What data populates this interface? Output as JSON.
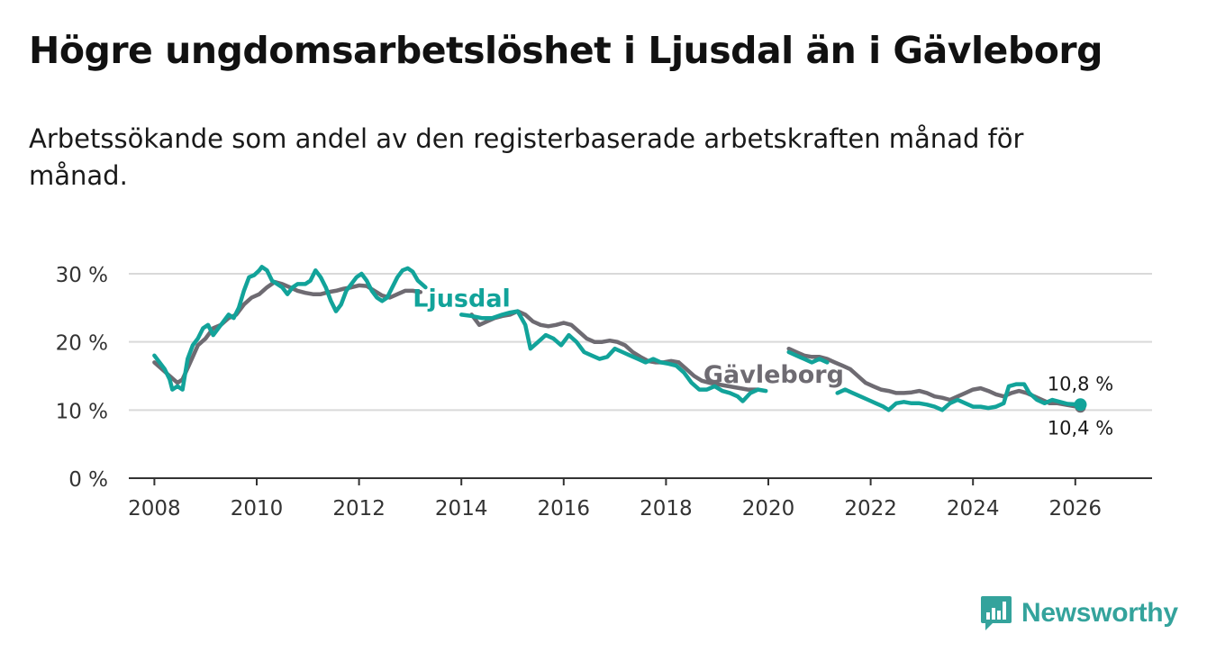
{
  "title": "Högre ungdomsarbetslöshet i Ljusdal än i Gävleborg",
  "subtitle": "Arbetssökande som andel av den registerbaserade arbetskraften månad för månad.",
  "brand": {
    "name": "Newsworthy",
    "icon": "bar-chart-logo-icon"
  },
  "colors": {
    "ljusdal": "#12a39a",
    "gavleborg": "#6e6b72",
    "grid": "#d9d9d9",
    "axis": "#333333"
  },
  "chart_data": {
    "type": "line",
    "xlabel": "",
    "ylabel": "",
    "xlim": [
      2007.5,
      2027.5
    ],
    "ylim": [
      0,
      30
    ],
    "x_ticks": [
      {
        "value": 2008,
        "label": "2008"
      },
      {
        "value": 2010,
        "label": "2010"
      },
      {
        "value": 2012,
        "label": "2012"
      },
      {
        "value": 2014,
        "label": "2014"
      },
      {
        "value": 2016,
        "label": "2016"
      },
      {
        "value": 2018,
        "label": "2018"
      },
      {
        "value": 2020,
        "label": "2020"
      },
      {
        "value": 2022,
        "label": "2022"
      },
      {
        "value": 2024,
        "label": "2024"
      },
      {
        "value": 2026,
        "label": "2026"
      }
    ],
    "y_ticks": [
      {
        "value": 0,
        "label": "0 %"
      },
      {
        "value": 10,
        "label": "10 %"
      },
      {
        "value": 20,
        "label": "20 %"
      },
      {
        "value": 30,
        "label": "30 %"
      }
    ],
    "grid": true,
    "series": [
      {
        "name": "Gävleborg",
        "label": "Gävleborg",
        "end_label": "10,4 %",
        "end_value": 10.4,
        "points": [
          [
            2008.0,
            17.0
          ],
          [
            2008.15,
            16.0
          ],
          [
            2008.3,
            15.0
          ],
          [
            2008.45,
            14.0
          ],
          [
            2008.55,
            14.5
          ],
          [
            2008.7,
            17.0
          ],
          [
            2008.85,
            19.5
          ],
          [
            2009.0,
            20.5
          ],
          [
            2009.15,
            22.0
          ],
          [
            2009.3,
            22.5
          ],
          [
            2009.45,
            23.5
          ],
          [
            2009.6,
            24.0
          ],
          [
            2009.75,
            25.5
          ],
          [
            2009.9,
            26.5
          ],
          [
            2010.05,
            27.0
          ],
          [
            2010.2,
            28.0
          ],
          [
            2010.35,
            28.8
          ],
          [
            2010.5,
            28.5
          ],
          [
            2010.65,
            28.0
          ],
          [
            2010.8,
            27.5
          ],
          [
            2010.95,
            27.2
          ],
          [
            2011.1,
            27.0
          ],
          [
            2011.25,
            27.0
          ],
          [
            2011.4,
            27.3
          ],
          [
            2011.55,
            27.5
          ],
          [
            2011.7,
            27.8
          ],
          [
            2011.85,
            28.0
          ],
          [
            2012.0,
            28.3
          ],
          [
            2012.15,
            28.2
          ],
          [
            2012.3,
            27.5
          ],
          [
            2012.45,
            26.8
          ],
          [
            2012.6,
            26.5
          ],
          [
            2012.75,
            27.0
          ],
          [
            2012.9,
            27.5
          ],
          [
            2013.05,
            27.5
          ],
          [
            2013.2,
            27.3
          ],
          null,
          [
            2014.2,
            24.0
          ],
          [
            2014.35,
            22.5
          ],
          [
            2014.5,
            23.0
          ],
          [
            2014.65,
            23.5
          ],
          [
            2014.8,
            23.8
          ],
          [
            2014.95,
            24.0
          ],
          [
            2015.1,
            24.5
          ],
          [
            2015.25,
            24.0
          ],
          [
            2015.4,
            23.0
          ],
          [
            2015.55,
            22.5
          ],
          [
            2015.7,
            22.3
          ],
          [
            2015.85,
            22.5
          ],
          [
            2016.0,
            22.8
          ],
          [
            2016.15,
            22.5
          ],
          [
            2016.3,
            21.5
          ],
          [
            2016.45,
            20.5
          ],
          [
            2016.6,
            20.0
          ],
          [
            2016.75,
            20.0
          ],
          [
            2016.9,
            20.2
          ],
          [
            2017.05,
            20.0
          ],
          [
            2017.2,
            19.5
          ],
          [
            2017.35,
            18.5
          ],
          [
            2017.5,
            17.8
          ],
          [
            2017.65,
            17.2
          ],
          [
            2017.8,
            17.0
          ],
          [
            2017.95,
            17.0
          ],
          [
            2018.1,
            17.2
          ],
          [
            2018.25,
            17.0
          ],
          [
            2018.4,
            16.0
          ],
          [
            2018.55,
            15.0
          ],
          [
            2018.7,
            14.3
          ],
          [
            2018.85,
            14.0
          ],
          [
            2019.0,
            13.8
          ],
          [
            2019.15,
            13.6
          ],
          [
            2019.3,
            13.4
          ],
          [
            2019.45,
            13.2
          ],
          [
            2019.6,
            13.0
          ],
          [
            2019.8,
            13.0
          ],
          null,
          [
            2020.4,
            19.0
          ],
          [
            2020.55,
            18.5
          ],
          [
            2020.7,
            18.0
          ],
          [
            2020.85,
            17.8
          ],
          [
            2021.0,
            17.8
          ],
          [
            2021.15,
            17.5
          ],
          [
            2021.3,
            17.0
          ],
          [
            2021.45,
            16.5
          ],
          [
            2021.6,
            16.0
          ],
          [
            2021.75,
            15.0
          ],
          [
            2021.9,
            14.0
          ],
          [
            2022.05,
            13.5
          ],
          [
            2022.2,
            13.0
          ],
          [
            2022.35,
            12.8
          ],
          [
            2022.5,
            12.5
          ],
          [
            2022.65,
            12.5
          ],
          [
            2022.8,
            12.6
          ],
          [
            2022.95,
            12.8
          ],
          [
            2023.1,
            12.5
          ],
          [
            2023.25,
            12.0
          ],
          [
            2023.4,
            11.8
          ],
          [
            2023.55,
            11.5
          ],
          [
            2023.7,
            12.0
          ],
          [
            2023.85,
            12.5
          ],
          [
            2024.0,
            13.0
          ],
          [
            2024.15,
            13.2
          ],
          [
            2024.3,
            12.8
          ],
          [
            2024.45,
            12.3
          ],
          [
            2024.6,
            12.0
          ],
          [
            2024.75,
            12.5
          ],
          [
            2024.9,
            12.8
          ],
          [
            2025.05,
            12.5
          ],
          [
            2025.2,
            12.0
          ],
          [
            2025.35,
            11.5
          ],
          [
            2025.5,
            11.0
          ],
          [
            2025.65,
            11.0
          ],
          [
            2025.8,
            10.8
          ],
          [
            2025.95,
            10.6
          ],
          [
            2026.1,
            10.4
          ]
        ]
      },
      {
        "name": "Ljusdal",
        "label": "Ljusdal",
        "end_label": "10,8 %",
        "end_value": 10.8,
        "points": [
          [
            2008.0,
            18.0
          ],
          [
            2008.1,
            17.0
          ],
          [
            2008.2,
            16.0
          ],
          [
            2008.3,
            14.5
          ],
          [
            2008.35,
            13.0
          ],
          [
            2008.45,
            13.5
          ],
          [
            2008.55,
            13.0
          ],
          [
            2008.65,
            17.5
          ],
          [
            2008.75,
            19.5
          ],
          [
            2008.85,
            20.5
          ],
          [
            2008.95,
            22.0
          ],
          [
            2009.05,
            22.5
          ],
          [
            2009.15,
            21.0
          ],
          [
            2009.3,
            22.5
          ],
          [
            2009.45,
            24.0
          ],
          [
            2009.55,
            23.5
          ],
          [
            2009.65,
            25.0
          ],
          [
            2009.75,
            27.5
          ],
          [
            2009.85,
            29.5
          ],
          [
            2009.95,
            29.8
          ],
          [
            2010.05,
            30.5
          ],
          [
            2010.1,
            31.0
          ],
          [
            2010.2,
            30.5
          ],
          [
            2010.3,
            29.0
          ],
          [
            2010.4,
            28.5
          ],
          [
            2010.5,
            28.0
          ],
          [
            2010.6,
            27.0
          ],
          [
            2010.7,
            28.0
          ],
          [
            2010.8,
            28.5
          ],
          [
            2010.95,
            28.5
          ],
          [
            2011.05,
            29.0
          ],
          [
            2011.15,
            30.5
          ],
          [
            2011.25,
            29.5
          ],
          [
            2011.35,
            28.0
          ],
          [
            2011.45,
            26.0
          ],
          [
            2011.55,
            24.5
          ],
          [
            2011.65,
            25.5
          ],
          [
            2011.75,
            27.5
          ],
          [
            2011.85,
            28.5
          ],
          [
            2011.95,
            29.5
          ],
          [
            2012.05,
            30.0
          ],
          [
            2012.15,
            29.0
          ],
          [
            2012.25,
            27.5
          ],
          [
            2012.35,
            26.5
          ],
          [
            2012.45,
            26.0
          ],
          [
            2012.55,
            26.5
          ],
          [
            2012.65,
            28.0
          ],
          [
            2012.75,
            29.5
          ],
          [
            2012.85,
            30.5
          ],
          [
            2012.95,
            30.8
          ],
          [
            2013.05,
            30.3
          ],
          [
            2013.15,
            29.0
          ],
          [
            2013.3,
            28.0
          ],
          null,
          [
            2014.0,
            24.0
          ],
          [
            2014.2,
            23.8
          ],
          [
            2014.4,
            23.5
          ],
          [
            2014.6,
            23.5
          ],
          [
            2014.8,
            24.0
          ],
          [
            2014.95,
            24.3
          ],
          [
            2015.1,
            24.5
          ],
          [
            2015.25,
            22.5
          ],
          [
            2015.35,
            19.0
          ],
          [
            2015.5,
            20.0
          ],
          [
            2015.65,
            21.0
          ],
          [
            2015.8,
            20.5
          ],
          [
            2015.95,
            19.5
          ],
          [
            2016.1,
            21.0
          ],
          [
            2016.25,
            20.0
          ],
          [
            2016.4,
            18.5
          ],
          [
            2016.55,
            18.0
          ],
          [
            2016.7,
            17.5
          ],
          [
            2016.85,
            17.8
          ],
          [
            2017.0,
            19.0
          ],
          [
            2017.15,
            18.5
          ],
          [
            2017.3,
            18.0
          ],
          [
            2017.45,
            17.5
          ],
          [
            2017.6,
            17.0
          ],
          [
            2017.75,
            17.5
          ],
          [
            2017.9,
            17.0
          ],
          [
            2018.05,
            16.8
          ],
          [
            2018.2,
            16.5
          ],
          [
            2018.35,
            15.5
          ],
          [
            2018.5,
            14.0
          ],
          [
            2018.65,
            13.0
          ],
          [
            2018.8,
            13.0
          ],
          [
            2018.95,
            13.5
          ],
          [
            2019.1,
            12.8
          ],
          [
            2019.25,
            12.5
          ],
          [
            2019.4,
            12.0
          ],
          [
            2019.5,
            11.3
          ],
          [
            2019.65,
            12.5
          ],
          [
            2019.8,
            13.0
          ],
          [
            2019.95,
            12.8
          ],
          null,
          [
            2020.4,
            18.5
          ],
          [
            2020.55,
            18.0
          ],
          [
            2020.7,
            17.5
          ],
          [
            2020.85,
            17.0
          ],
          [
            2021.0,
            17.5
          ],
          [
            2021.15,
            17.0
          ],
          null,
          [
            2021.35,
            12.5
          ],
          [
            2021.5,
            13.0
          ],
          [
            2021.65,
            12.5
          ],
          [
            2021.8,
            12.0
          ],
          [
            2021.95,
            11.5
          ],
          [
            2022.1,
            11.0
          ],
          [
            2022.25,
            10.5
          ],
          [
            2022.35,
            10.0
          ],
          [
            2022.5,
            11.0
          ],
          [
            2022.65,
            11.2
          ],
          [
            2022.8,
            11.0
          ],
          [
            2022.95,
            11.0
          ],
          [
            2023.1,
            10.8
          ],
          [
            2023.25,
            10.5
          ],
          [
            2023.4,
            10.0
          ],
          [
            2023.55,
            11.0
          ],
          [
            2023.7,
            11.5
          ],
          [
            2023.85,
            11.0
          ],
          [
            2024.0,
            10.5
          ],
          [
            2024.15,
            10.5
          ],
          [
            2024.3,
            10.3
          ],
          [
            2024.45,
            10.5
          ],
          [
            2024.6,
            11.0
          ],
          [
            2024.7,
            13.5
          ],
          [
            2024.85,
            13.8
          ],
          [
            2025.0,
            13.8
          ],
          [
            2025.1,
            12.5
          ],
          [
            2025.25,
            11.5
          ],
          [
            2025.4,
            11.0
          ],
          [
            2025.55,
            11.5
          ],
          [
            2025.7,
            11.2
          ],
          [
            2025.85,
            10.9
          ],
          [
            2026.1,
            10.8
          ]
        ]
      }
    ]
  }
}
